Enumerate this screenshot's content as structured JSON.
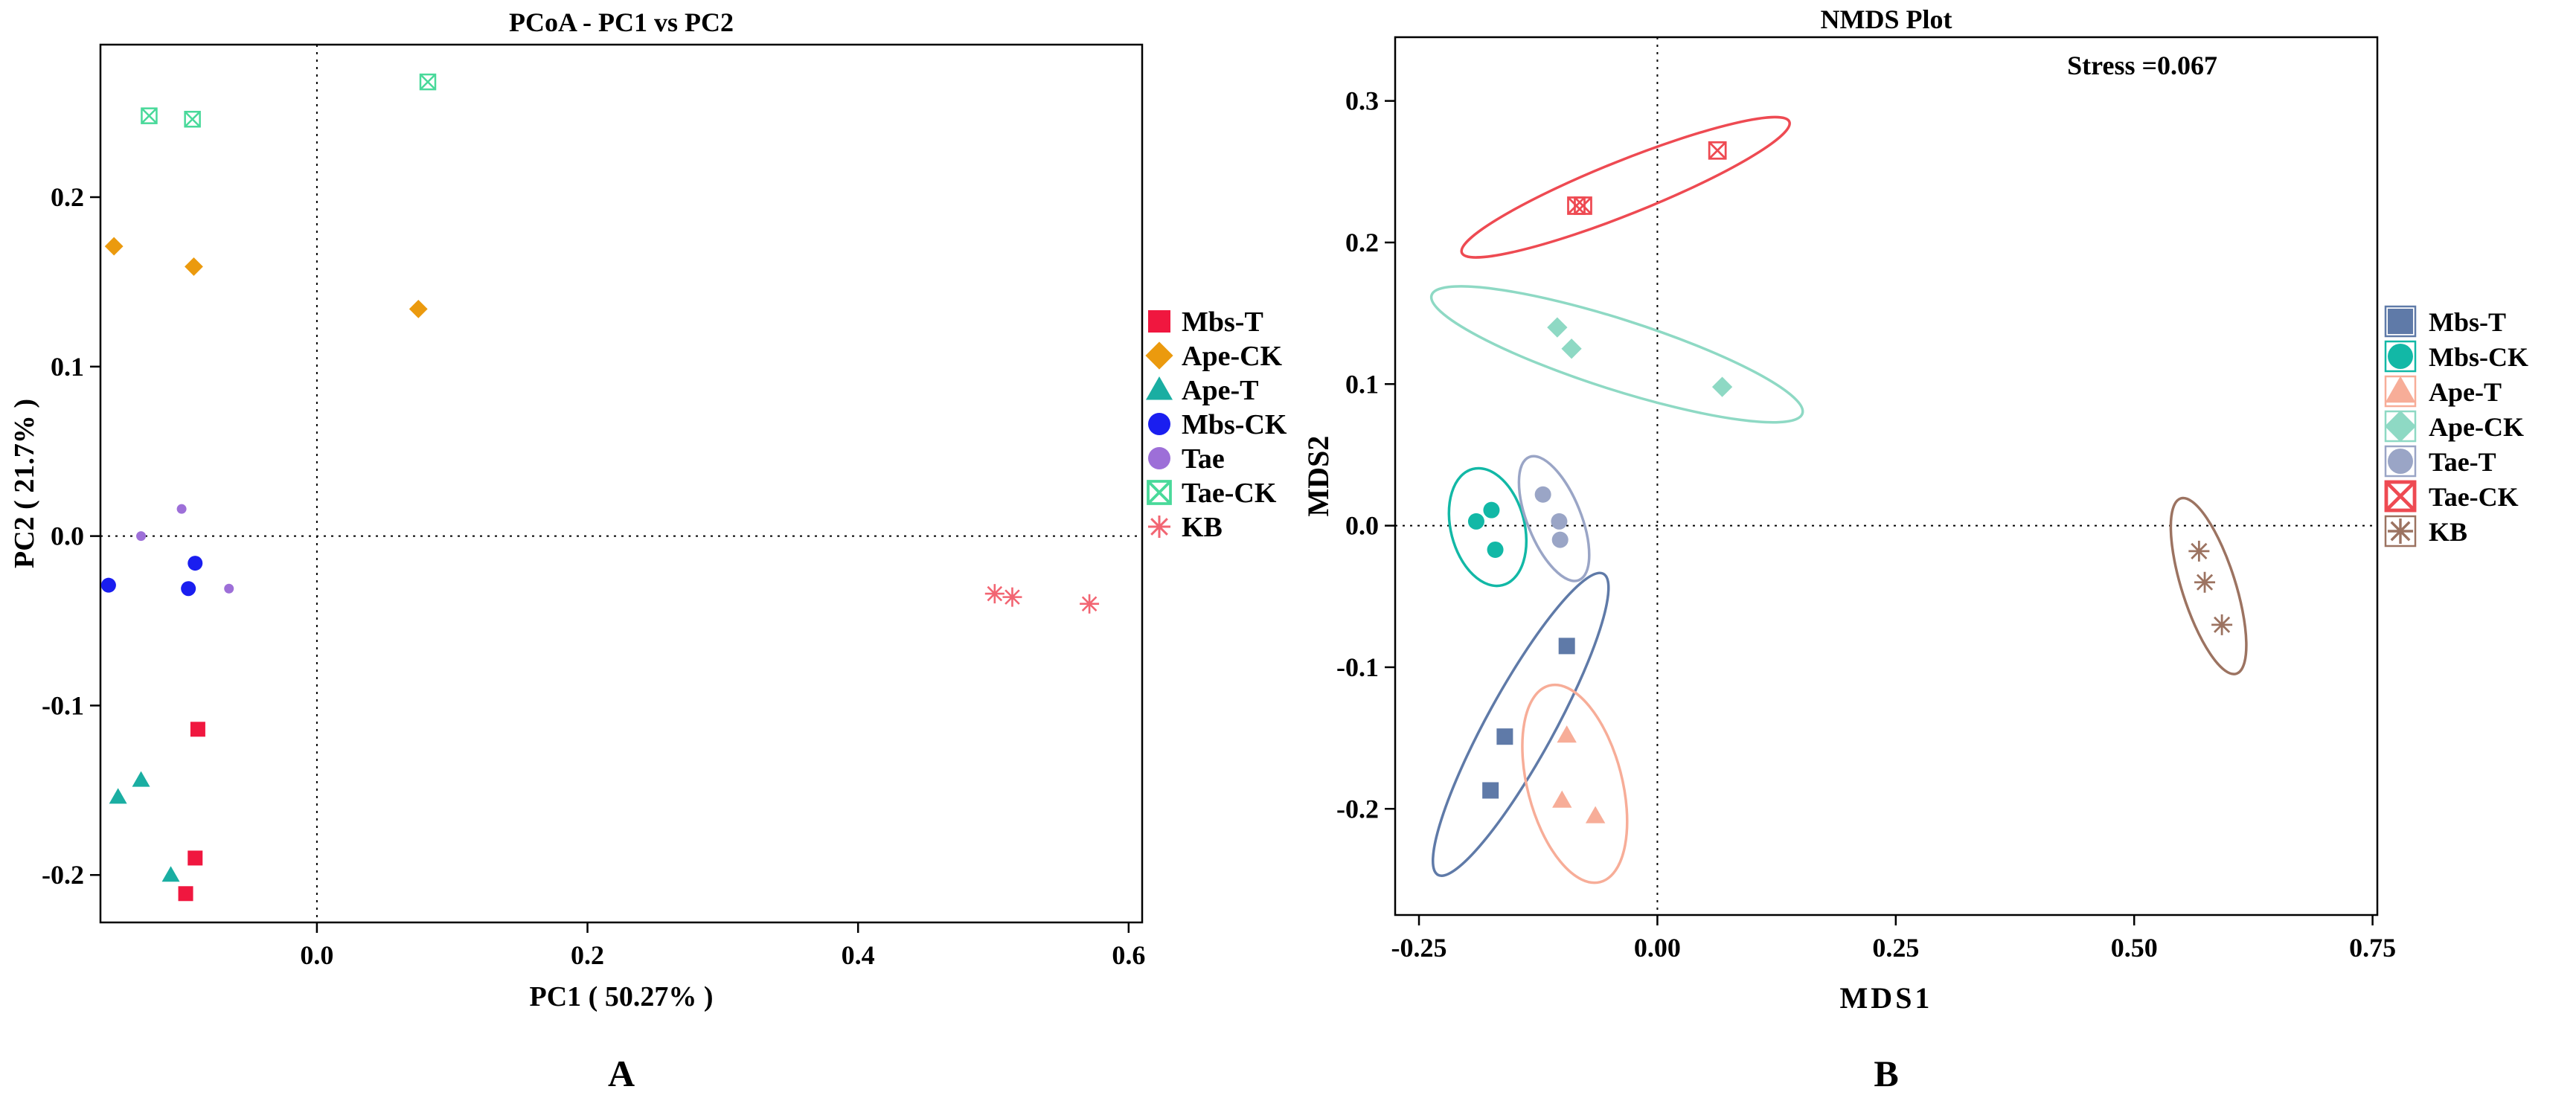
{
  "chart_data": [
    {
      "type": "scatter",
      "title": "PCoA - PC1 vs PC2",
      "xlabel": "PC1 ( 50.27% )",
      "ylabel": "PC2 ( 21.7% )",
      "panel_label": "A",
      "xlim": [
        -0.16,
        0.61
      ],
      "ylim": [
        -0.228,
        0.29
      ],
      "xticks": [
        {
          "v": 0.0,
          "label": "0.0"
        },
        {
          "v": 0.2,
          "label": "0.2"
        },
        {
          "v": 0.4,
          "label": "0.4"
        },
        {
          "v": 0.6,
          "label": "0.6"
        }
      ],
      "yticks": [
        {
          "v": -0.2,
          "label": "-0.2"
        },
        {
          "v": -0.1,
          "label": "-0.1"
        },
        {
          "v": 0.0,
          "label": "0.0"
        },
        {
          "v": 0.1,
          "label": "0.1"
        },
        {
          "v": 0.2,
          "label": "0.2"
        }
      ],
      "zero_lines": true,
      "legend_position": "right",
      "series": [
        {
          "name": "Mbs-T",
          "color": "#f0173f",
          "marker": "square",
          "points": [
            [
              -0.088,
              -0.114
            ],
            [
              -0.09,
              -0.19
            ],
            [
              -0.097,
              -0.211
            ]
          ]
        },
        {
          "name": "Ape-CK",
          "color": "#eb9a0e",
          "marker": "diamond",
          "points": [
            [
              -0.15,
              0.171
            ],
            [
              -0.091,
              0.159
            ],
            [
              0.075,
              0.134
            ]
          ]
        },
        {
          "name": "Ape-T",
          "color": "#1aaea2",
          "marker": "triangle",
          "points": [
            [
              -0.147,
              -0.154
            ],
            [
              -0.13,
              -0.144
            ],
            [
              -0.108,
              -0.2
            ]
          ]
        },
        {
          "name": "Mbs-CK",
          "color": "#1a1ef0",
          "marker": "circle",
          "points": [
            [
              -0.154,
              -0.029
            ],
            [
              -0.095,
              -0.031
            ],
            [
              -0.09,
              -0.016
            ]
          ]
        },
        {
          "name": "Tae",
          "color": "#9d6fd8",
          "marker": "circle",
          "points": [
            [
              -0.1,
              0.016
            ],
            [
              -0.13,
              0.0
            ],
            [
              -0.065,
              -0.031
            ]
          ]
        },
        {
          "name": "Tae-CK",
          "color": "#49d99a",
          "marker": "boxx",
          "points": [
            [
              -0.124,
              0.248
            ],
            [
              -0.092,
              0.246
            ],
            [
              0.082,
              0.268
            ]
          ]
        },
        {
          "name": "KB",
          "color": "#f26572",
          "marker": "asterisk",
          "points": [
            [
              0.501,
              -0.034
            ],
            [
              0.514,
              -0.036
            ],
            [
              0.571,
              -0.04
            ]
          ]
        }
      ]
    },
    {
      "type": "scatter",
      "title": "NMDS Plot",
      "xlabel": "MDS1",
      "ylabel": "MDS2",
      "panel_label": "B",
      "annotation": "Stress =0.067",
      "xlim": [
        -0.275,
        0.755
      ],
      "ylim": [
        -0.275,
        0.345
      ],
      "xticks": [
        {
          "v": -0.25,
          "label": "-0.25"
        },
        {
          "v": 0.0,
          "label": "0.00"
        },
        {
          "v": 0.25,
          "label": "0.25"
        },
        {
          "v": 0.5,
          "label": "0.50"
        },
        {
          "v": 0.75,
          "label": "0.75"
        }
      ],
      "yticks": [
        {
          "v": -0.2,
          "label": "-0.2"
        },
        {
          "v": -0.1,
          "label": "-0.1"
        },
        {
          "v": 0.0,
          "label": "0.0"
        },
        {
          "v": 0.1,
          "label": "0.1"
        },
        {
          "v": 0.2,
          "label": "0.2"
        },
        {
          "v": 0.3,
          "label": "0.3"
        }
      ],
      "zero_lines": true,
      "ellipses": true,
      "legend_position": "right",
      "series": [
        {
          "name": "Mbs-T",
          "color": "#5f7aa8",
          "marker": "square",
          "points": [
            [
              -0.16,
              -0.149
            ],
            [
              -0.175,
              -0.187
            ],
            [
              -0.095,
              -0.085
            ]
          ]
        },
        {
          "name": "Mbs-CK",
          "color": "#12b8a6",
          "marker": "circle",
          "points": [
            [
              -0.19,
              0.003
            ],
            [
              -0.174,
              0.011
            ],
            [
              -0.17,
              -0.017
            ]
          ]
        },
        {
          "name": "Ape-T",
          "color": "#f7ad98",
          "marker": "triangle",
          "points": [
            [
              -0.095,
              -0.148
            ],
            [
              -0.1,
              -0.194
            ],
            [
              -0.065,
              -0.205
            ]
          ]
        },
        {
          "name": "Ape-CK",
          "color": "#8ed9c4",
          "marker": "diamond",
          "points": [
            [
              -0.105,
              0.14
            ],
            [
              -0.09,
              0.125
            ],
            [
              0.068,
              0.098
            ]
          ]
        },
        {
          "name": "Tae-T",
          "color": "#9aa5c6",
          "marker": "circle",
          "points": [
            [
              -0.12,
              0.022
            ],
            [
              -0.103,
              0.003
            ],
            [
              -0.102,
              -0.01
            ]
          ]
        },
        {
          "name": "Tae-CK",
          "color": "#ee4a52",
          "marker": "boxx",
          "points": [
            [
              -0.085,
              0.226
            ],
            [
              -0.078,
              0.226
            ],
            [
              0.063,
              0.265
            ]
          ]
        },
        {
          "name": "KB",
          "color": "#9c7361",
          "marker": "asterisk",
          "points": [
            [
              0.568,
              -0.018
            ],
            [
              0.574,
              -0.04
            ],
            [
              0.592,
              -0.07
            ]
          ]
        }
      ]
    }
  ]
}
